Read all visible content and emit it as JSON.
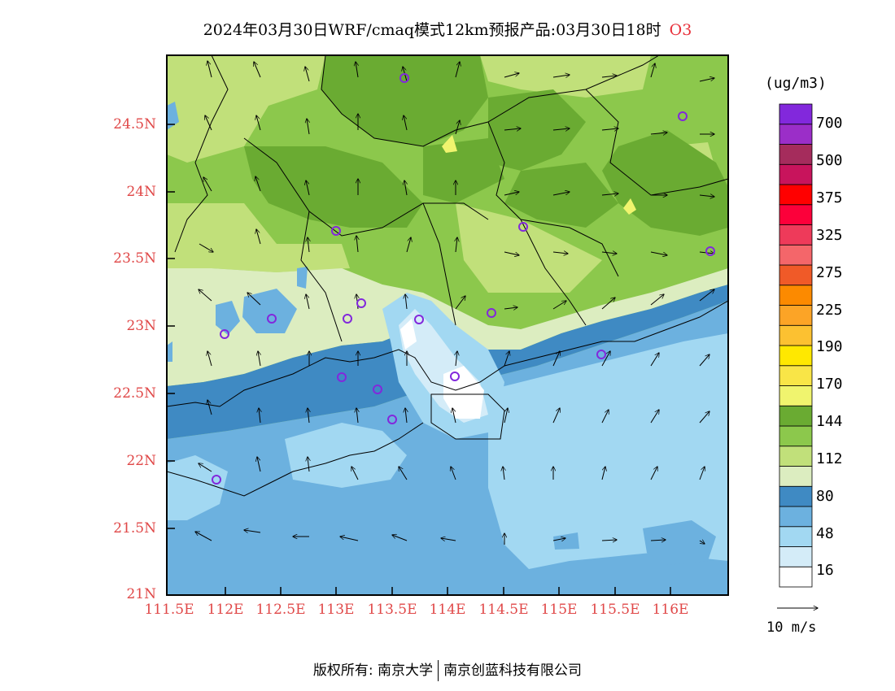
{
  "title": {
    "text": "2024年03月30日WRF/cmaq模式12km预报产品:03月30日18时",
    "pollutant": "O3"
  },
  "axes": {
    "lat_labels": [
      "24.5N",
      "24N",
      "23.5N",
      "23N",
      "22.5N",
      "22N",
      "21.5N",
      "21N"
    ],
    "lon_labels": [
      "111.5E",
      "112E",
      "112.5E",
      "113E",
      "113.5E",
      "114E",
      "114.5E",
      "115E",
      "115.5E",
      "116E"
    ]
  },
  "colorbar": {
    "unit": "(ug/m3)",
    "labels": [
      "700",
      "500",
      "375",
      "325",
      "275",
      "225",
      "190",
      "170",
      "144",
      "112",
      "80",
      "48",
      "16"
    ],
    "colors": [
      "#ffffff",
      "#d4ecf8",
      "#a2d8f2",
      "#6cb1df",
      "#3f8ac3",
      "#dcedc0",
      "#c1e07a",
      "#8cc84c",
      "#6aab32",
      "#f0f46e",
      "#f9e547",
      "#ffe800",
      "#fcc131",
      "#fca426",
      "#fc8a00",
      "#f05a28",
      "#f4666a",
      "#ee3a5a",
      "#fc003a",
      "#ff0000",
      "#c8145c",
      "#a52c5c",
      "#9b2ec8",
      "#8228dc"
    ]
  },
  "wind_reference": {
    "label": "10 m/s"
  },
  "footer": {
    "copyright_left": "版权所有: 南京大学",
    "copyright_right": "南京创蓝科技有限公司"
  }
}
